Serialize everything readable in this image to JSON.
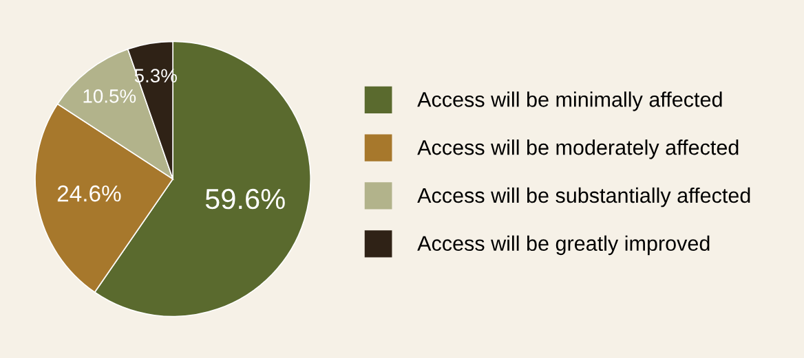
{
  "chart_data": {
    "type": "pie",
    "categories": [
      "Access will be minimally affected",
      "Access will be moderately affected",
      "Access will be substantially affected",
      "Access will be greatly improved"
    ],
    "values": [
      59.6,
      24.6,
      10.5,
      5.3
    ],
    "colors": [
      "#5a6a2e",
      "#a7782c",
      "#b2b38b",
      "#2f2216"
    ],
    "value_labels": [
      "59.6%",
      "24.6%",
      "10.5%",
      "5.3%"
    ],
    "legend": "right"
  }
}
